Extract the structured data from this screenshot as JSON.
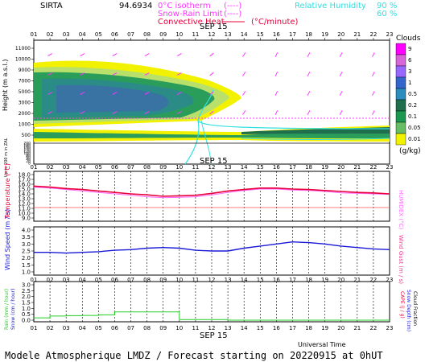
{
  "header": {
    "station": "SIRTA",
    "coords": "94.6934",
    "legend_isotherm": "0°C isotherm",
    "legend_isotherm_dash": "(----)",
    "legend_snow": "Snow-Rain Limit",
    "legend_snow_dash": "(----)",
    "legend_convective": "Convective Heat.",
    "legend_convective_unit": "(°C/minute)",
    "legend_rh": "Relative Humidity",
    "rh_90": "90 %",
    "rh_60": "60 %"
  },
  "hour_labels": [
    "01",
    "02",
    "03",
    "04",
    "05",
    "06",
    "07",
    "08",
    "09",
    "10",
    "11",
    "12",
    "13",
    "14",
    "15",
    "16",
    "17",
    "18",
    "19",
    "20",
    "21",
    "22",
    "23"
  ],
  "date_label": "SEP 15",
  "clouds": {
    "title": "Clouds",
    "unit": "(g/kg)",
    "scale_labels": [
      "9",
      "6",
      "3",
      "1",
      "0.5",
      "0.2",
      "0.1",
      "0.05",
      "0.01"
    ],
    "scale_colors": [
      "#ff00ff",
      "#d966d9",
      "#9966ff",
      "#3366cc",
      "#2b8cbe",
      "#1f6e4e",
      "#1a9850",
      "#66bd63",
      "#f2f200"
    ],
    "y_label": "Height (m a.s.l.)",
    "y_label_low": "Up to 200 m in ZAL",
    "ticks_upper": [
      "11000",
      "10000",
      "9000",
      "7000",
      "5000",
      "3000",
      "2000",
      "1000",
      "500"
    ],
    "ticks_lower": [
      "200",
      "180",
      "160",
      "140",
      "120",
      "100",
      "80",
      "60",
      "40",
      "20",
      "0"
    ]
  },
  "temperature": {
    "y_label": "Temperature (°C)",
    "y_right": "HUMIDEX (°C)",
    "ticks": [
      "18.0",
      "17.0",
      "16.0",
      "15.0",
      "14.0",
      "13.0",
      "12.0",
      "11.0",
      "10.0",
      "9.0"
    ]
  },
  "wind": {
    "y_label": "Wind Speed (m / s)",
    "y_right": "Wind Gust (m / s)",
    "ticks": [
      "4.0",
      "3.5",
      "3.0",
      "2.5",
      "2.0",
      "1.5",
      "1.0"
    ]
  },
  "precip": {
    "y_label_rain": "Rain (mm / hour)",
    "y_label_snow": "Snow (cm / hour)",
    "y_right_cape": "CAPE (J / g)",
    "y_right_snowdepth": "Snow Depth (cm)",
    "y_right_cloud": "Cloud Fraction",
    "ticks": [
      "3.0",
      "2.5",
      "2.0",
      "1.5",
      "1.0",
      "0.5",
      "0.0"
    ]
  },
  "footer": {
    "universal_time": "Universal Time",
    "title": "Modele Atmospherique LMDZ / Forecast starting on 20220915 at 0hUT"
  },
  "colors": {
    "temperature": "#e8003a",
    "humidex": "#ff66ff",
    "wind": "#1a1ad6",
    "rain": "#22cc22",
    "isotherm": "#ff33ff",
    "rh": "#33e0e0"
  },
  "chart_data": [
    {
      "type": "heatmap",
      "title": "Clouds",
      "xlabel": "Universal Time",
      "ylabel": "Height (m a.s.l.)",
      "x": [
        "01",
        "02",
        "03",
        "04",
        "05",
        "06",
        "07",
        "08",
        "09",
        "10",
        "11",
        "12",
        "13",
        "14",
        "15",
        "16",
        "17",
        "18",
        "19",
        "20",
        "21",
        "22",
        "23"
      ],
      "notes": "cloud layer 2000-7000 m during hours 01-12; low cloud near 500-1000 m from 11 to 23"
    },
    {
      "type": "line",
      "ylabel": "Temperature (°C)",
      "ylim": [
        9,
        18
      ],
      "x": [
        "01",
        "02",
        "03",
        "04",
        "05",
        "06",
        "07",
        "08",
        "09",
        "10",
        "11",
        "12",
        "13",
        "14",
        "15",
        "16",
        "17",
        "18",
        "19",
        "20",
        "21",
        "22",
        "23"
      ],
      "series": [
        {
          "name": "Temperature",
          "values": [
            15.6,
            15.4,
            15.1,
            14.9,
            14.6,
            14.3,
            14.0,
            13.8,
            13.5,
            13.6,
            13.7,
            14.1,
            14.6,
            14.9,
            15.2,
            15.2,
            15.0,
            14.9,
            14.7,
            14.5,
            14.3,
            14.2,
            14.0
          ]
        },
        {
          "name": "Humidex",
          "values": [
            15.4,
            15.2,
            14.9,
            14.6,
            14.3,
            14.0,
            13.7,
            13.4,
            13.2,
            13.3,
            13.4,
            13.8,
            14.3,
            14.7,
            15.0,
            15.0,
            14.8,
            14.7,
            14.5,
            14.2,
            14.1,
            14.0,
            13.9
          ]
        }
      ]
    },
    {
      "type": "line",
      "ylabel": "Wind Speed (m / s)",
      "ylim": [
        1.0,
        4.0
      ],
      "x": [
        "01",
        "02",
        "03",
        "04",
        "05",
        "06",
        "07",
        "08",
        "09",
        "10",
        "11",
        "12",
        "13",
        "14",
        "15",
        "16",
        "17",
        "18",
        "19",
        "20",
        "21",
        "22",
        "23"
      ],
      "series": [
        {
          "name": "Wind Speed",
          "values": [
            2.4,
            2.4,
            2.35,
            2.4,
            2.45,
            2.55,
            2.6,
            2.7,
            2.75,
            2.7,
            2.55,
            2.5,
            2.5,
            2.7,
            2.85,
            3.0,
            3.15,
            3.1,
            3.0,
            2.85,
            2.75,
            2.65,
            2.6
          ]
        }
      ]
    },
    {
      "type": "bar",
      "ylabel": "Rain (mm / hour)",
      "ylim": [
        0,
        3.0
      ],
      "categories": [
        "01",
        "02",
        "03",
        "04",
        "05",
        "06",
        "07",
        "08",
        "09",
        "10",
        "11",
        "12",
        "13",
        "14",
        "15",
        "16",
        "17",
        "18",
        "19",
        "20",
        "21",
        "22",
        "23"
      ],
      "values": [
        0.2,
        0.35,
        0.38,
        0.4,
        0.45,
        0.7,
        0.7,
        0.7,
        0.7,
        0.05,
        0.05,
        0.05,
        0.0,
        0.0,
        0.0,
        0.0,
        0.0,
        0.0,
        0.0,
        0.0,
        0.0,
        0.0,
        0.0
      ]
    }
  ]
}
